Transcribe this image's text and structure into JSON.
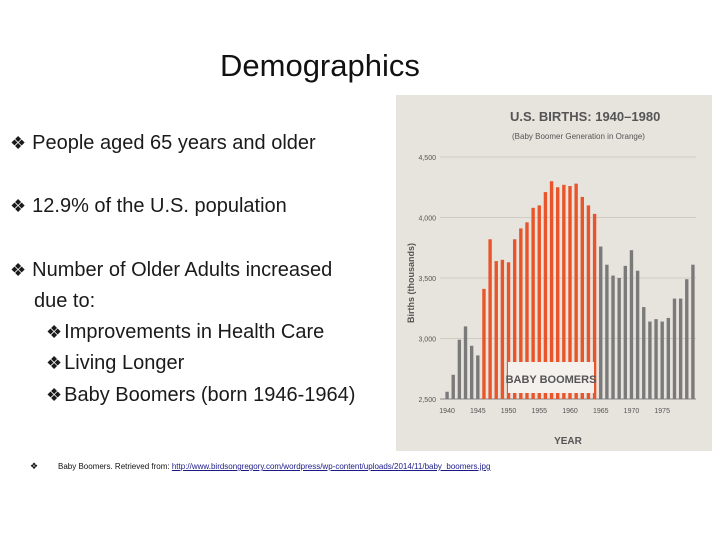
{
  "slide": {
    "title": "Demographics",
    "bullets": [
      {
        "text": "People aged 65 years and older"
      },
      {
        "text": "12.9% of the U.S. population"
      },
      {
        "text": "Number of Older Adults increased"
      },
      {
        "text": "due to:"
      },
      {
        "text": "Improvements in Health Care"
      },
      {
        "text": "Living Longer"
      },
      {
        "text": "Baby Boomers (born 1946-1964)"
      }
    ],
    "bullet_glyph": "❖",
    "citation": {
      "text": "Baby Boomers. Retrieved from:",
      "link": "http://www.birdsongregory.com/wordpress/wp-content/uploads/2014/11/baby_boomers.jpg"
    }
  },
  "chart_data": {
    "type": "bar",
    "title": "U.S. BIRTHS: 1940–1980",
    "subtitle": "(Baby Boomer Generation in Orange)",
    "xlabel": "YEAR",
    "ylabel": "Births (thousands)",
    "annotation": "BABY BOOMERS",
    "ylim": [
      2500,
      4500
    ],
    "yticks": [
      2500,
      3000,
      3500,
      4000,
      4500
    ],
    "yticklabels": [
      "2,500",
      "3,000",
      "3,500",
      "4,000",
      "4,500"
    ],
    "xticklabels": [
      "1940",
      "1945",
      "1950",
      "1955",
      "1960",
      "1965",
      "1970",
      "1975"
    ],
    "grid": true,
    "highlight_color": "#e8552a",
    "base_color": "#7a7a7a",
    "categories": [
      1940,
      1941,
      1942,
      1943,
      1944,
      1945,
      1946,
      1947,
      1948,
      1949,
      1950,
      1951,
      1952,
      1953,
      1954,
      1955,
      1956,
      1957,
      1958,
      1959,
      1960,
      1961,
      1962,
      1963,
      1964,
      1965,
      1966,
      1967,
      1968,
      1969,
      1970,
      1971,
      1972,
      1973,
      1974,
      1975,
      1976,
      1977,
      1978,
      1979,
      1980
    ],
    "values": [
      2560,
      2700,
      2990,
      3100,
      2940,
      2860,
      3410,
      3820,
      3640,
      3650,
      3630,
      3820,
      3910,
      3960,
      4080,
      4100,
      4210,
      4300,
      4250,
      4270,
      4260,
      4280,
      4170,
      4100,
      4030,
      3760,
      3610,
      3520,
      3500,
      3600,
      3730,
      3560,
      3260,
      3140,
      3160,
      3140,
      3170,
      3330,
      3330,
      3490,
      3610
    ],
    "highlight": [
      false,
      false,
      false,
      false,
      false,
      false,
      true,
      true,
      true,
      true,
      true,
      true,
      true,
      true,
      true,
      true,
      true,
      true,
      true,
      true,
      true,
      true,
      true,
      true,
      true,
      false,
      false,
      false,
      false,
      false,
      false,
      false,
      false,
      false,
      false,
      false,
      false,
      false,
      false,
      false,
      false
    ]
  }
}
